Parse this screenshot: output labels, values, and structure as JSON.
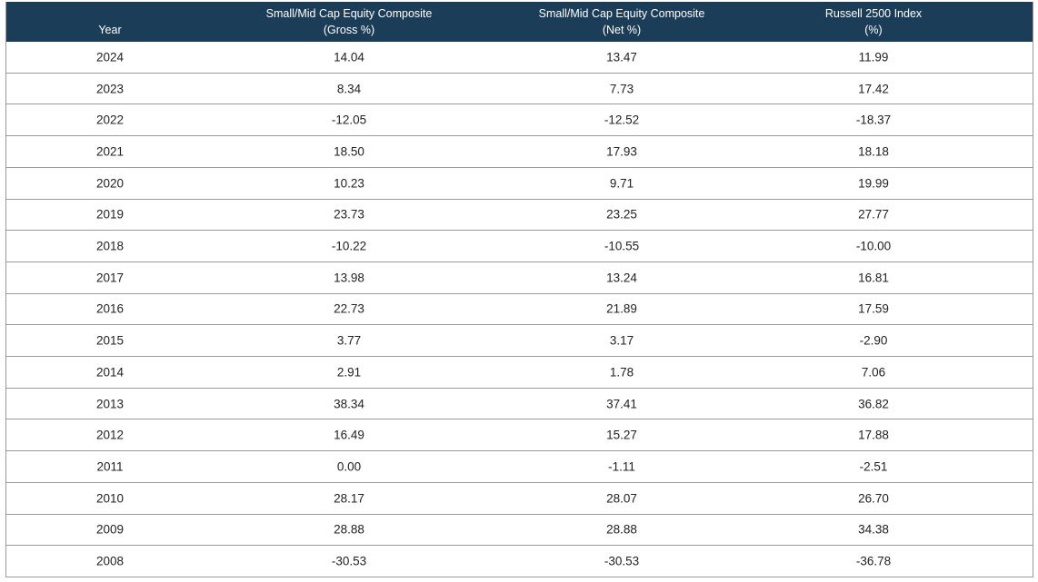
{
  "table": {
    "header": [
      [
        "Year"
      ],
      [
        "Small/Mid Cap Equity Composite",
        "(Gross %)"
      ],
      [
        "Small/Mid Cap Equity Composite",
        "(Net %)"
      ],
      [
        "Russell 2500 Index",
        "(%)"
      ]
    ],
    "rows": [
      [
        "2024",
        "14.04",
        "13.47",
        "11.99"
      ],
      [
        "2023",
        "8.34",
        "7.73",
        "17.42"
      ],
      [
        "2022",
        "-12.05",
        "-12.52",
        "-18.37"
      ],
      [
        "2021",
        "18.50",
        "17.93",
        "18.18"
      ],
      [
        "2020",
        "10.23",
        "9.71",
        "19.99"
      ],
      [
        "2019",
        "23.73",
        "23.25",
        "27.77"
      ],
      [
        "2018",
        "-10.22",
        "-10.55",
        "-10.00"
      ],
      [
        "2017",
        "13.98",
        "13.24",
        "16.81"
      ],
      [
        "2016",
        "22.73",
        "21.89",
        "17.59"
      ],
      [
        "2015",
        "3.77",
        "3.17",
        "-2.90"
      ],
      [
        "2014",
        "2.91",
        "1.78",
        "7.06"
      ],
      [
        "2013",
        "38.34",
        "37.41",
        "36.82"
      ],
      [
        "2012",
        "16.49",
        "15.27",
        "17.88"
      ],
      [
        "2011",
        "0.00",
        "-1.11",
        "-2.51"
      ],
      [
        "2010",
        "28.17",
        "28.07",
        "26.70"
      ],
      [
        "2009",
        "28.88",
        "28.88",
        "34.38"
      ],
      [
        "2008",
        "-30.53",
        "-30.53",
        "-36.78"
      ]
    ]
  }
}
